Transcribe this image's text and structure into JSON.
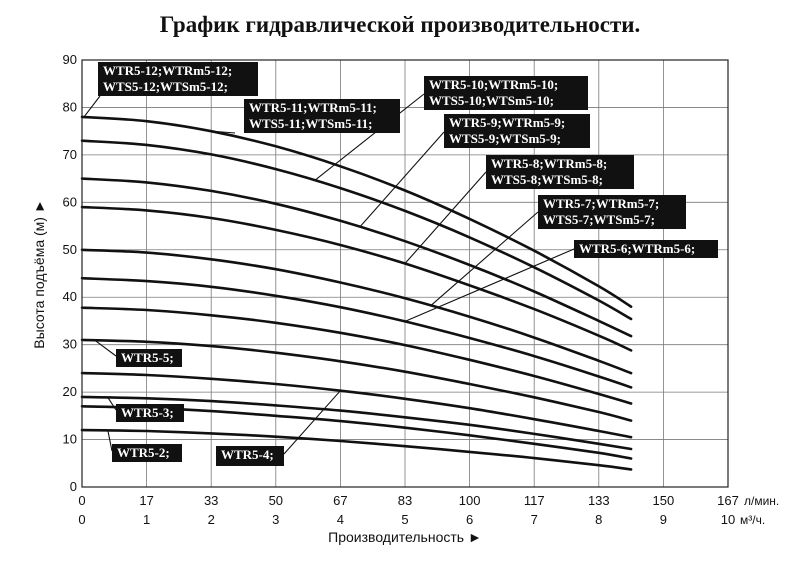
{
  "title": "График гидравлической производительности.",
  "chart_data": {
    "type": "line",
    "title": "График гидравлической производительности.",
    "xlabel": "Производительность ►",
    "ylabel": "Высота подъёма (м) ►",
    "x_unit_primary": "л/мин.",
    "x_unit_secondary": "м³/ч.",
    "xlim": [
      0,
      10
    ],
    "ylim": [
      0,
      90
    ],
    "grid": true,
    "x_ticks_primary": [
      "0",
      "17",
      "33",
      "50",
      "67",
      "83",
      "100",
      "117",
      "133",
      "150",
      "167"
    ],
    "x_ticks_secondary": [
      "0",
      "1",
      "2",
      "3",
      "4",
      "5",
      "6",
      "7",
      "8",
      "9",
      "10"
    ],
    "y_ticks": [
      "0",
      "10",
      "20",
      "30",
      "40",
      "50",
      "60",
      "70",
      "80",
      "90"
    ],
    "x": [
      0,
      1,
      2,
      3,
      4,
      5,
      6,
      7,
      8,
      8.5
    ],
    "series": [
      {
        "values": [
          12.0,
          11.8,
          11.3,
          10.6,
          9.7,
          8.6,
          7.4,
          6.1,
          4.6,
          3.7
        ]
      },
      {
        "values": [
          17.0,
          16.7,
          16.0,
          15.0,
          13.9,
          12.5,
          10.9,
          9.1,
          7.2,
          6.0
        ]
      },
      {
        "values": [
          19.0,
          18.7,
          18.1,
          17.2,
          16.1,
          14.7,
          13.1,
          11.2,
          9.1,
          8.0
        ]
      },
      {
        "values": [
          24.0,
          23.6,
          22.8,
          21.7,
          20.3,
          18.6,
          16.6,
          14.3,
          11.8,
          10.5
        ]
      },
      {
        "values": [
          31.0,
          30.6,
          29.7,
          28.3,
          26.5,
          24.3,
          21.7,
          18.9,
          15.8,
          14.0
        ]
      },
      {
        "values": [
          37.8,
          37.3,
          36.2,
          34.6,
          32.5,
          29.9,
          26.8,
          23.4,
          19.6,
          17.6
        ]
      },
      {
        "values": [
          44.0,
          43.4,
          42.2,
          40.3,
          37.9,
          34.9,
          31.4,
          27.6,
          23.3,
          21.0
        ]
      },
      {
        "values": [
          50.0,
          49.4,
          48.0,
          45.9,
          43.1,
          39.8,
          35.9,
          31.5,
          26.6,
          24.0
        ]
      },
      {
        "values": [
          59.0,
          58.3,
          56.7,
          54.2,
          51.0,
          47.1,
          42.5,
          37.5,
          31.9,
          28.8
        ]
      },
      {
        "values": [
          65.0,
          64.2,
          62.4,
          59.7,
          56.1,
          51.8,
          46.8,
          41.2,
          35.0,
          31.8
        ]
      },
      {
        "values": [
          73.0,
          72.1,
          70.1,
          67.0,
          63.0,
          58.2,
          52.6,
          46.3,
          39.3,
          35.4
        ]
      },
      {
        "values": [
          78.0,
          77.1,
          75.0,
          71.8,
          67.6,
          62.5,
          56.5,
          49.8,
          42.3,
          38.0
        ]
      }
    ],
    "labels": [
      {
        "text": "WTR5-12;WTRm5-12;"
      },
      {
        "text": "WTS5-12;WTSm5-12;"
      },
      {
        "text": "WTR5-11;WTRm5-11;"
      },
      {
        "text": "WTS5-11;WTSm5-11;"
      },
      {
        "text": "WTR5-10;WTRm5-10;"
      },
      {
        "text": "WTS5-10;WTSm5-10;"
      },
      {
        "text": "WTR5-9;WTRm5-9;"
      },
      {
        "text": "WTS5-9;WTSm5-9;"
      },
      {
        "text": "WTR5-8;WTRm5-8;"
      },
      {
        "text": "WTS5-8;WTSm5-8;"
      },
      {
        "text": "WTR5-7;WTRm5-7;"
      },
      {
        "text": "WTS5-7;WTSm5-7;"
      },
      {
        "text": "WTR5-6;WTRm5-6;"
      },
      {
        "text": "WTR5-5;"
      },
      {
        "text": "WTR5-3;"
      },
      {
        "text": "WTR5-2;"
      },
      {
        "text": "WTR5-4;"
      }
    ]
  }
}
